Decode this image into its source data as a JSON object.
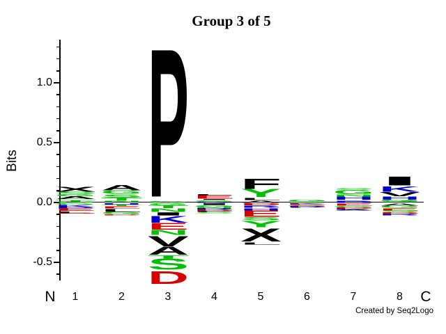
{
  "title": "Group 3 of 5",
  "ylabel": "Bits",
  "credit": "Created by Seq2Logo",
  "x_axis": {
    "left_label": "N",
    "right_label": "C",
    "positions": [
      "1",
      "2",
      "3",
      "4",
      "5",
      "6",
      "7",
      "8"
    ]
  },
  "y_axis": {
    "unit": "bits",
    "major_tick_values": [
      1.0,
      0.5,
      0.0,
      -0.5
    ],
    "major_tick_labels": [
      "1.0",
      "0.5",
      "0.0",
      "-0.5"
    ],
    "minor_tick_step": 0.1,
    "range": [
      -0.65,
      1.38
    ]
  },
  "colors": {
    "black": "#000000",
    "red": "#d40000",
    "green": "#00bf00",
    "blue": "#0000cc"
  },
  "chart_data": {
    "type": "sequence-logo",
    "title": "Group 3 of 5",
    "xlabel_sequence": [
      "N",
      "1",
      "2",
      "3",
      "4",
      "5",
      "6",
      "7",
      "8",
      "C"
    ],
    "ylabel": "Bits",
    "ylim": [
      -0.65,
      1.38
    ],
    "grid": false,
    "positions": [
      {
        "pos": "1",
        "above": [
          {
            "c": "X",
            "color": "black",
            "bits": 0.045
          },
          {
            "c": "S",
            "color": "green",
            "bits": 0.022
          },
          {
            "c": "G",
            "color": "green",
            "bits": 0.018
          },
          {
            "c": "A",
            "color": "black",
            "bits": 0.025
          },
          {
            "c": "T",
            "color": "green",
            "bits": 0.02
          },
          {
            "c": "N",
            "color": "green",
            "bits": 0.006
          }
        ],
        "below": [
          {
            "c": "G",
            "color": "green",
            "bits": 0.012
          },
          {
            "c": "K",
            "color": "blue",
            "bits": 0.02
          },
          {
            "c": "R",
            "color": "blue",
            "bits": 0.01
          },
          {
            "c": "E",
            "color": "red",
            "bits": 0.025
          },
          {
            "c": "L",
            "color": "black",
            "bits": 0.015
          },
          {
            "c": "D",
            "color": "red",
            "bits": 0.006
          }
        ]
      },
      {
        "pos": "2",
        "above": [
          {
            "c": "A",
            "color": "black",
            "bits": 0.05
          },
          {
            "c": "G",
            "color": "green",
            "bits": 0.034
          },
          {
            "c": "S",
            "color": "green",
            "bits": 0.03
          },
          {
            "c": "T",
            "color": "green",
            "bits": 0.028
          },
          {
            "c": "N",
            "color": "green",
            "bits": 0.01
          }
        ],
        "below": [
          {
            "c": "H",
            "color": "blue",
            "bits": 0.014
          },
          {
            "c": "T",
            "color": "green",
            "bits": 0.012
          },
          {
            "c": "E",
            "color": "red",
            "bits": 0.02
          },
          {
            "c": "L",
            "color": "black",
            "bits": 0.026
          },
          {
            "c": "G",
            "color": "green",
            "bits": 0.022
          },
          {
            "c": "D",
            "color": "red",
            "bits": 0.008
          }
        ]
      },
      {
        "pos": "3",
        "above": [
          {
            "c": "P",
            "color": "black",
            "bits": 1.345
          },
          {
            "c": "G",
            "color": "green",
            "bits": 0.012
          }
        ],
        "below": [
          {
            "c": "G",
            "color": "green",
            "bits": 0.018
          },
          {
            "c": "T",
            "color": "green",
            "bits": 0.024
          },
          {
            "c": "N",
            "color": "green",
            "bits": 0.032
          },
          {
            "c": "I",
            "color": "black",
            "bits": 0.028
          },
          {
            "c": "K",
            "color": "blue",
            "bits": 0.06
          },
          {
            "c": "E",
            "color": "red",
            "bits": 0.06
          },
          {
            "c": "N",
            "color": "green",
            "bits": 0.045
          },
          {
            "c": "V",
            "color": "black",
            "bits": 0.095
          },
          {
            "c": "A",
            "color": "black",
            "bits": 0.072
          },
          {
            "c": "T",
            "color": "green",
            "bits": 0.028
          },
          {
            "c": "S",
            "color": "green",
            "bits": 0.1
          },
          {
            "c": "D",
            "color": "red",
            "bits": 0.115
          }
        ]
      },
      {
        "pos": "4",
        "above": [
          {
            "c": "L",
            "color": "black",
            "bits": 0.008
          },
          {
            "c": "E",
            "color": "red",
            "bits": 0.034
          },
          {
            "c": "I",
            "color": "black",
            "bits": 0.008
          },
          {
            "c": "G",
            "color": "green",
            "bits": 0.012
          },
          {
            "c": "K",
            "color": "blue",
            "bits": 0.008
          }
        ],
        "below": [
          {
            "c": "I",
            "color": "black",
            "bits": 0.016
          },
          {
            "c": "G",
            "color": "green",
            "bits": 0.016
          },
          {
            "c": "N",
            "color": "green",
            "bits": 0.01
          },
          {
            "c": "R",
            "color": "blue",
            "bits": 0.012
          },
          {
            "c": "D",
            "color": "red",
            "bits": 0.012
          },
          {
            "c": "P",
            "color": "black",
            "bits": 0.008
          },
          {
            "c": "S",
            "color": "green",
            "bits": 0.01
          }
        ]
      },
      {
        "pos": "5",
        "above": [
          {
            "c": "F",
            "color": "black",
            "bits": 0.092
          },
          {
            "c": "Y",
            "color": "green",
            "bits": 0.072
          },
          {
            "c": "L",
            "color": "black",
            "bits": 0.022
          },
          {
            "c": "A",
            "color": "black",
            "bits": 0.02
          }
        ],
        "below": [
          {
            "c": "D",
            "color": "red",
            "bits": 0.018
          },
          {
            "c": "R",
            "color": "blue",
            "bits": 0.02
          },
          {
            "c": "H",
            "color": "blue",
            "bits": 0.022
          },
          {
            "c": "E",
            "color": "red",
            "bits": 0.058
          },
          {
            "c": "S",
            "color": "green",
            "bits": 0.028
          },
          {
            "c": "Y",
            "color": "green",
            "bits": 0.058
          },
          {
            "c": "X",
            "color": "black",
            "bits": 0.12
          },
          {
            "c": "L",
            "color": "black",
            "bits": 0.022
          }
        ]
      },
      {
        "pos": "6",
        "above": [
          {
            "c": "G",
            "color": "green",
            "bits": 0.014
          },
          {
            "c": "S",
            "color": "green",
            "bits": 0.008
          }
        ],
        "below": [
          {
            "c": "K",
            "color": "blue",
            "bits": 0.008
          },
          {
            "c": "E",
            "color": "red",
            "bits": 0.008
          },
          {
            "c": "G",
            "color": "green",
            "bits": 0.008
          },
          {
            "c": "D",
            "color": "red",
            "bits": 0.006
          },
          {
            "c": "R",
            "color": "blue",
            "bits": 0.006
          },
          {
            "c": "L",
            "color": "black",
            "bits": 0.005
          }
        ]
      },
      {
        "pos": "7",
        "above": [
          {
            "c": "S",
            "color": "green",
            "bits": 0.01
          },
          {
            "c": "G",
            "color": "green",
            "bits": 0.035
          },
          {
            "c": "N",
            "color": "green",
            "bits": 0.022
          },
          {
            "c": "H",
            "color": "blue",
            "bits": 0.03
          },
          {
            "c": "R",
            "color": "blue",
            "bits": 0.02
          }
        ],
        "below": [
          {
            "c": "E",
            "color": "red",
            "bits": 0.022
          },
          {
            "c": "G",
            "color": "green",
            "bits": 0.012
          },
          {
            "c": "D",
            "color": "red",
            "bits": 0.012
          },
          {
            "c": "K",
            "color": "blue",
            "bits": 0.008
          },
          {
            "c": "A",
            "color": "black",
            "bits": 0.008
          }
        ]
      },
      {
        "pos": "8",
        "above": [
          {
            "c": "I",
            "color": "black",
            "bits": 0.08
          },
          {
            "c": "K",
            "color": "blue",
            "bits": 0.05
          },
          {
            "c": "V",
            "color": "black",
            "bits": 0.035
          },
          {
            "c": "H",
            "color": "blue",
            "bits": 0.03
          },
          {
            "c": "G",
            "color": "green",
            "bits": 0.015
          },
          {
            "c": "S",
            "color": "green",
            "bits": 0.01
          }
        ],
        "below": [
          {
            "c": "A",
            "color": "black",
            "bits": 0.02
          },
          {
            "c": "G",
            "color": "green",
            "bits": 0.02
          },
          {
            "c": "E",
            "color": "red",
            "bits": 0.02
          },
          {
            "c": "S",
            "color": "green",
            "bits": 0.016
          },
          {
            "c": "D",
            "color": "red",
            "bits": 0.016
          },
          {
            "c": "R",
            "color": "blue",
            "bits": 0.01
          }
        ]
      }
    ]
  }
}
